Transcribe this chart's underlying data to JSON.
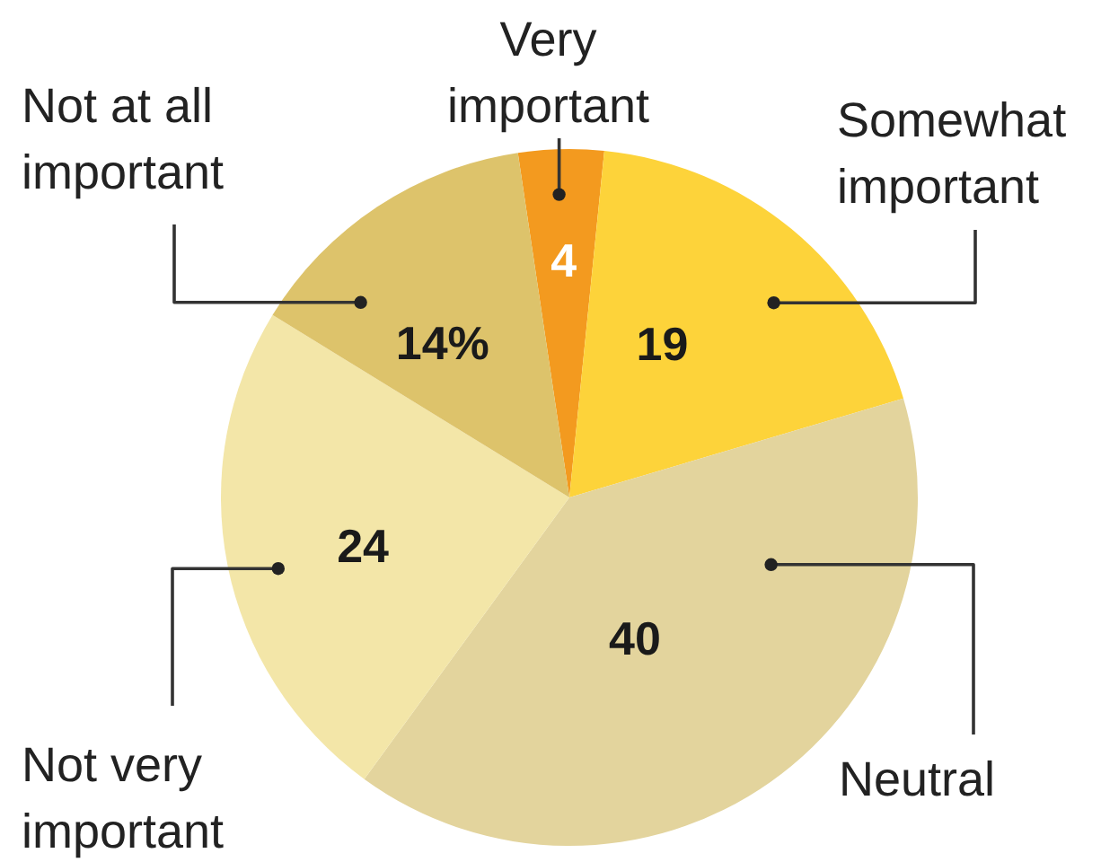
{
  "chart_data": {
    "type": "pie",
    "categories": [
      "Very important",
      "Somewhat important",
      "Neutral",
      "Not very important",
      "Not at all important"
    ],
    "values": [
      4,
      19,
      40,
      24,
      14
    ],
    "colors": [
      "#f39a1f",
      "#fdd33a",
      "#e3d49d",
      "#f3e6a8",
      "#ddc36b"
    ],
    "value_labels": [
      "4",
      "19",
      "40",
      "24",
      "14%"
    ]
  }
}
